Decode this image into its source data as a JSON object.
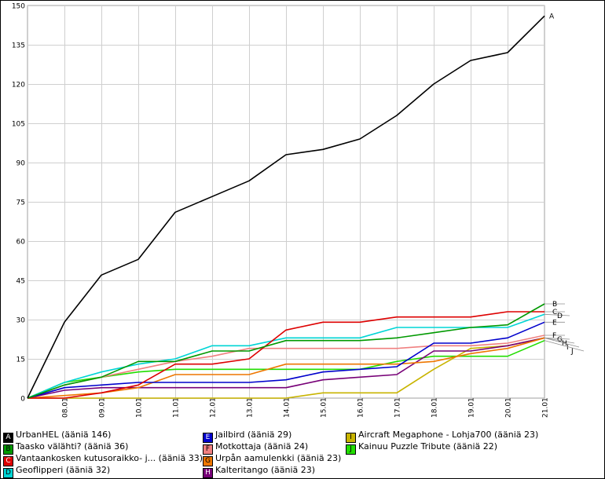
{
  "chart_data": {
    "type": "line",
    "title": "",
    "xlabel": "",
    "ylabel": "",
    "ylim": [
      0,
      150
    ],
    "yticks": [
      0,
      15,
      30,
      45,
      60,
      75,
      90,
      105,
      120,
      135,
      150
    ],
    "categories": [
      "",
      "08.01",
      "09.01",
      "10.01",
      "11.01",
      "12.01",
      "13.01",
      "14.01",
      "15.01",
      "16.01",
      "17.01",
      "18.01",
      "19.01",
      "20.01",
      "21.01"
    ],
    "grid": true,
    "legend_position": "bottom",
    "series": [
      {
        "key": "A",
        "name": "UrbanHEL",
        "label": "UrbanHEL (ääniä 146)",
        "color": "#000000",
        "values": [
          0,
          29,
          47,
          53,
          71,
          77,
          83,
          93,
          95,
          99,
          108,
          120,
          129,
          132,
          146
        ]
      },
      {
        "key": "B",
        "name": "Taasko välähti?",
        "label": "Taasko välähti? (ääniä 36)",
        "color": "#009900",
        "values": [
          0,
          5,
          8,
          14,
          14,
          18,
          18,
          22,
          22,
          22,
          23,
          25,
          27,
          28,
          36
        ]
      },
      {
        "key": "C",
        "name": "Vantaankosken kutusoraikko- j...",
        "label": "Vantaankosken kutusoraikko- j... (ääniä 33)",
        "color": "#dd0000",
        "values": [
          0,
          0,
          2,
          5,
          13,
          13,
          15,
          26,
          29,
          29,
          31,
          31,
          31,
          33,
          33
        ]
      },
      {
        "key": "D",
        "name": "Geoflipperi",
        "label": "Geoflipperi (ääniä 32)",
        "color": "#00d5d5",
        "values": [
          0,
          6,
          10,
          13,
          15,
          20,
          20,
          23,
          23,
          23,
          27,
          27,
          27,
          27,
          32
        ]
      },
      {
        "key": "E",
        "name": "Jailbird",
        "label": "Jailbird (ääniä 29)",
        "color": "#0000cc",
        "values": [
          0,
          4,
          5,
          6,
          6,
          6,
          6,
          7,
          10,
          11,
          12,
          21,
          21,
          23,
          29
        ]
      },
      {
        "key": "F",
        "name": "Motkottaja",
        "label": "Motkottaja (ääniä 24)",
        "color": "#f08080",
        "values": [
          0,
          5,
          8,
          11,
          14,
          16,
          19,
          19,
          19,
          19,
          19,
          20,
          20,
          21,
          24
        ]
      },
      {
        "key": "G",
        "name": "Urpån aamulenkki",
        "label": "Urpån aamulenkki (ääniä 23)",
        "color": "#ee7700",
        "values": [
          0,
          1,
          2,
          4,
          9,
          9,
          9,
          13,
          13,
          13,
          13,
          14,
          17,
          19,
          23
        ]
      },
      {
        "key": "H",
        "name": "Kalteritango",
        "label": "Kalteritango (ääniä 23)",
        "color": "#770077",
        "values": [
          0,
          3,
          4,
          4,
          4,
          4,
          4,
          4,
          7,
          8,
          9,
          18,
          18,
          20,
          23
        ]
      },
      {
        "key": "I",
        "name": "Aircraft Megaphone - Lohja700",
        "label": "Aircraft Megaphone - Lohja700 (ääniä 23)",
        "color": "#c8b400",
        "values": [
          0,
          0,
          0,
          0,
          0,
          0,
          0,
          0,
          2,
          2,
          2,
          11,
          19,
          20,
          23
        ]
      },
      {
        "key": "J",
        "name": "Kainuu Puzzle Tribute",
        "label": "Kainuu Puzzle Tribute (ääniä 22)",
        "color": "#22dd00",
        "values": [
          0,
          6,
          8,
          10,
          11,
          11,
          11,
          11,
          11,
          11,
          14,
          16,
          16,
          16,
          22
        ]
      }
    ]
  }
}
